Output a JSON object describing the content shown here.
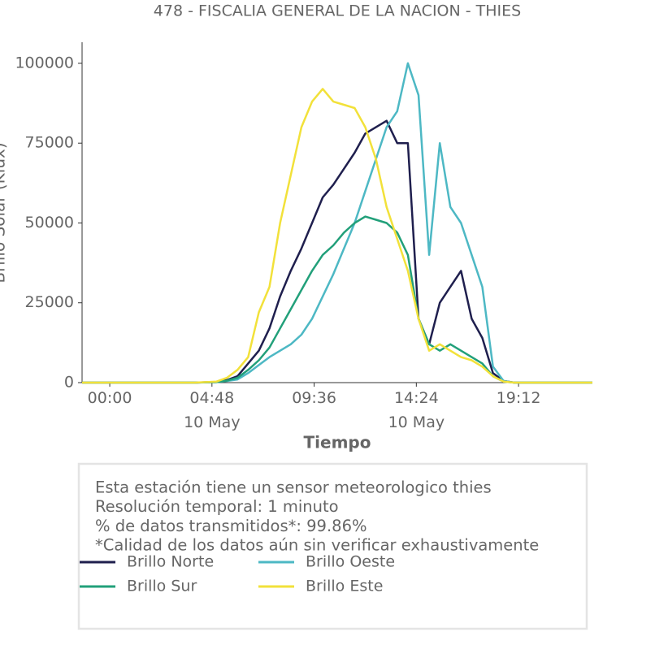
{
  "chart_data": {
    "type": "line",
    "title": "478 - FISCALIA GENERAL DE LA NACION - THIES",
    "x_label": "Tiempo",
    "y_label": "Brillo Solar (Klux)",
    "x": [
      -1.3,
      0,
      2,
      4,
      5,
      5.5,
      6,
      6.5,
      7,
      7.5,
      8,
      8.5,
      9,
      9.5,
      10,
      10.5,
      11,
      11.5,
      12,
      12.5,
      13,
      13.5,
      14,
      14.5,
      15,
      15.5,
      16,
      16.5,
      17,
      17.5,
      18,
      18.5,
      19,
      19.5,
      20,
      21,
      22.67
    ],
    "series": [
      {
        "name": "Brillo Norte",
        "color": "#1f1f4e",
        "values": [
          0,
          0,
          0,
          0,
          200,
          800,
          2000,
          6000,
          10000,
          17000,
          27000,
          35000,
          42000,
          50000,
          58000,
          62000,
          67000,
          72000,
          78000,
          80000,
          82000,
          75000,
          75000,
          20000,
          12000,
          25000,
          30000,
          35000,
          20000,
          14000,
          3000,
          500,
          0,
          0,
          0,
          0,
          0
        ]
      },
      {
        "name": "Brillo Oeste",
        "color": "#4db8c4",
        "values": [
          0,
          0,
          0,
          0,
          150,
          500,
          1000,
          3000,
          5500,
          8000,
          10000,
          12000,
          15000,
          20000,
          27000,
          34000,
          42000,
          50000,
          60000,
          70000,
          80000,
          85000,
          100000,
          90000,
          40000,
          75000,
          55000,
          50000,
          40000,
          30000,
          5000,
          500,
          0,
          0,
          0,
          0,
          0
        ]
      },
      {
        "name": "Brillo Sur",
        "color": "#22a07a",
        "values": [
          0,
          0,
          0,
          0,
          150,
          600,
          1500,
          4000,
          7000,
          11000,
          17000,
          23000,
          29000,
          35000,
          40000,
          43000,
          47000,
          50000,
          52000,
          51000,
          50000,
          47000,
          40000,
          20000,
          12000,
          10000,
          12000,
          10000,
          8000,
          6000,
          2000,
          300,
          0,
          0,
          0,
          0,
          0
        ]
      },
      {
        "name": "Brillo Este",
        "color": "#f2e13a",
        "values": [
          0,
          0,
          0,
          0,
          300,
          1500,
          4000,
          8000,
          22000,
          30000,
          50000,
          65000,
          80000,
          88000,
          92000,
          88000,
          87000,
          86000,
          80000,
          70000,
          55000,
          45000,
          35000,
          20000,
          10000,
          12000,
          10000,
          8000,
          7000,
          5000,
          2000,
          300,
          0,
          0,
          0,
          0,
          0
        ]
      }
    ],
    "xlim": [
      -1.3,
      22.67
    ],
    "ylim": [
      0,
      106600
    ],
    "xticks": [
      {
        "value": 0,
        "label": "00:00"
      },
      {
        "value": 4.8,
        "label": "04:48\n10 May"
      },
      {
        "value": 9.6,
        "label": "09:36"
      },
      {
        "value": 14.4,
        "label": "14:24\n10 May"
      },
      {
        "value": 19.2,
        "label": "19:12"
      }
    ],
    "yticks": [
      0,
      25000,
      50000,
      75000,
      100000
    ],
    "info": [
      "Esta estación tiene un sensor meteorologico thies",
      "Resolución temporal: 1 minuto",
      "% de datos transmitidos*: 99.86%",
      "*Calidad de los datos aún sin verificar exhaustivamente"
    ]
  }
}
